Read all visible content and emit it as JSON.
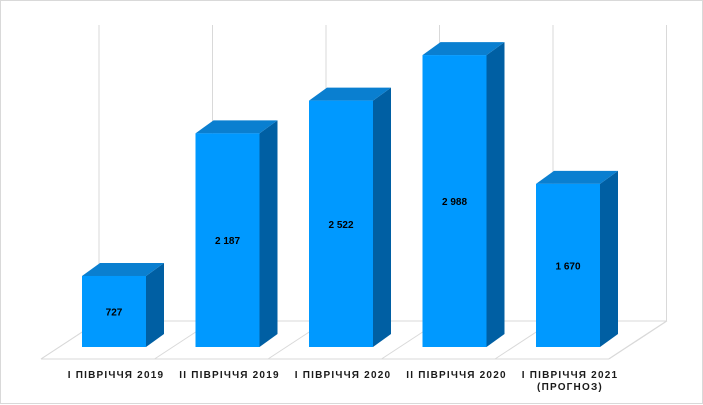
{
  "colors": {
    "bar_front": "#0099ff",
    "bar_top": "#0a7fd0",
    "bar_side": "#005fa3",
    "grid": "#d9d9d9"
  },
  "chart_data": {
    "type": "bar",
    "three_d": true,
    "categories": [
      [
        "І ПІВРІЧЧЯ 2019"
      ],
      [
        "ІІ ПІВРІЧЧЯ 2019"
      ],
      [
        "І ПІВРІЧЧЯ 2020"
      ],
      [
        "ІІ ПІВРІЧЧЯ 2020"
      ],
      [
        "І ПІВРІЧЧЯ 2021",
        "(ПРОГНОЗ)"
      ]
    ],
    "values": [
      727,
      2187,
      2522,
      2988,
      1670
    ],
    "data_labels": [
      "727",
      "2 187",
      "2 522",
      "2 988",
      "1 670"
    ],
    "title": "",
    "xlabel": "",
    "ylabel": "",
    "ylim": [
      0,
      3000
    ],
    "grid": "vertical",
    "legend": "none"
  }
}
